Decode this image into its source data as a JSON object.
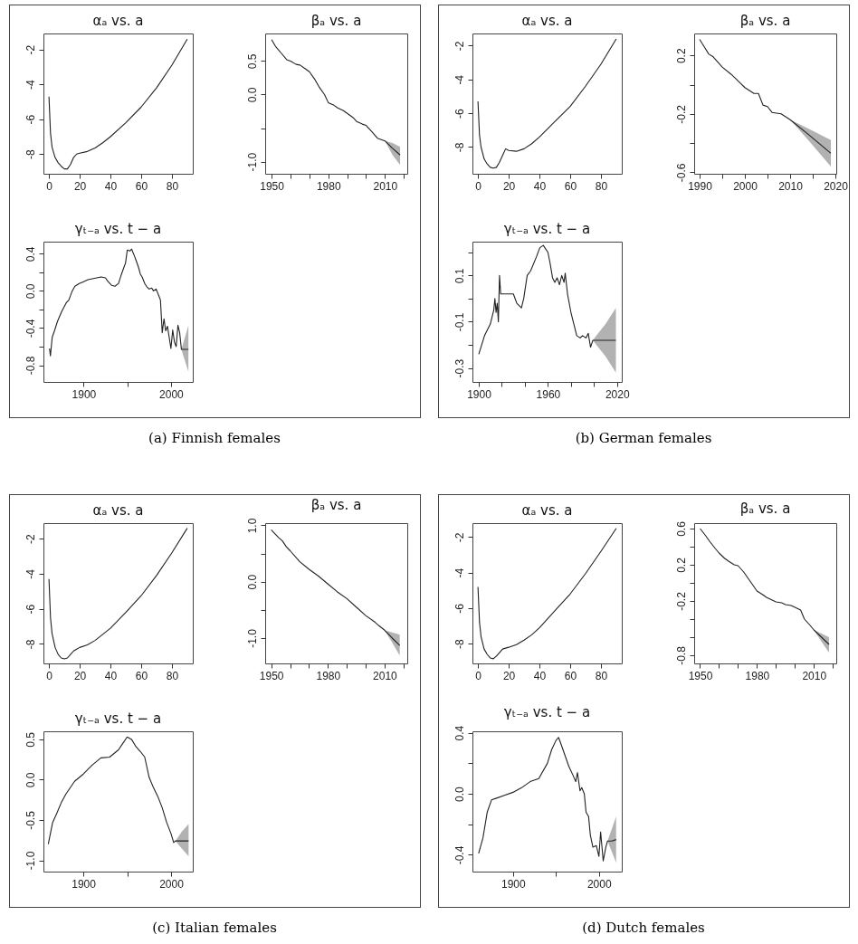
{
  "chart_data": [
    {
      "type": "line",
      "title": "αₐ vs. a",
      "x": [
        0,
        1,
        2,
        4,
        6,
        8,
        10,
        12,
        14,
        16,
        18,
        20,
        25,
        30,
        35,
        40,
        50,
        60,
        70,
        80,
        90
      ],
      "xlim": [
        -3.6,
        93.6
      ],
      "xticks": [
        0,
        20,
        40,
        60,
        80
      ],
      "ylim": [
        -9.13,
        -1.08
      ],
      "yticks": [
        -2,
        -4,
        -6,
        -8
      ],
      "series": [
        {
          "color": "#222222",
          "values": [
            -4.7,
            -6.8,
            -7.6,
            -8.2,
            -8.5,
            -8.7,
            -8.85,
            -8.85,
            -8.6,
            -8.2,
            -8.0,
            -7.95,
            -7.85,
            -7.65,
            -7.35,
            -7.0,
            -6.2,
            -5.3,
            -4.2,
            -2.9,
            -1.4
          ]
        }
      ]
    },
    {
      "type": "line",
      "title": "βₐ vs. a",
      "x": [
        1950,
        1952,
        1955,
        1958,
        1960,
        1963,
        1965,
        1968,
        1970,
        1973,
        1975,
        1978,
        1980,
        1983,
        1985,
        1988,
        1990,
        1993,
        1995,
        1998,
        2000,
        2003,
        2006,
        2008,
        2010,
        2014,
        2018
      ],
      "xlim": [
        1946.6,
        2021.8
      ],
      "xticks": [
        1950,
        {
          "value": 1960,
          "label": null
        },
        {
          "value": 1970,
          "label": null
        },
        1980,
        {
          "value": 1990,
          "label": null
        },
        {
          "value": 2000,
          "label": null
        },
        2010,
        {
          "value": 2020,
          "label": null
        }
      ],
      "ylim": [
        -1.18,
        0.91
      ],
      "yticks": [
        0.5,
        {
          "value": 0,
          "label": "0.0"
        },
        {
          "value": -0.5,
          "label": null
        },
        {
          "value": -1,
          "label": "-1.0"
        }
      ],
      "series": [
        {
          "color": "#222222",
          "values": [
            0.82,
            0.72,
            0.62,
            0.52,
            0.5,
            0.45,
            0.44,
            0.38,
            0.34,
            0.22,
            0.12,
            0.0,
            -0.12,
            -0.16,
            -0.2,
            -0.24,
            -0.28,
            -0.34,
            -0.4,
            -0.44,
            -0.46,
            -0.55,
            -0.65,
            -0.67,
            -0.69,
            -0.8,
            -0.9
          ],
          "lower": [
            null,
            null,
            null,
            null,
            null,
            null,
            null,
            null,
            null,
            null,
            null,
            null,
            null,
            null,
            null,
            null,
            null,
            null,
            null,
            null,
            null,
            null,
            null,
            null,
            -0.69,
            -0.9,
            -1.05
          ],
          "upper": [
            null,
            null,
            null,
            null,
            null,
            null,
            null,
            null,
            null,
            null,
            null,
            null,
            null,
            null,
            null,
            null,
            null,
            null,
            null,
            null,
            null,
            null,
            null,
            null,
            -0.69,
            -0.72,
            -0.78
          ]
        }
      ]
    },
    {
      "type": "line",
      "title": "γₜ₋ₐ vs. t − a",
      "annotations": [
        "(a) Finnish females"
      ],
      "x": [
        1861,
        1862,
        1864,
        1867,
        1870,
        1875,
        1880,
        1883,
        1887,
        1890,
        1895,
        1900,
        1905,
        1910,
        1915,
        1920,
        1925,
        1928,
        1932,
        1936,
        1940,
        1943,
        1946,
        1948,
        1950,
        1953,
        1955,
        1958,
        1960,
        1963,
        1965,
        1967,
        1970,
        1972,
        1975,
        1978,
        1980,
        1983,
        1986,
        1988,
        1990,
        1992,
        1994,
        1996,
        1998,
        2000,
        2002,
        2004,
        2006,
        2008,
        2010,
        2012,
        2016,
        2020
      ],
      "xlim": [
        1854,
        2025
      ],
      "xticks": [
        1900,
        {
          "value": 1950,
          "label": null
        },
        2000
      ],
      "ylim": [
        -0.98,
        0.53
      ],
      "yticks": [
        0.4,
        {
          "value": 0.2,
          "label": null
        },
        {
          "value": 0,
          "label": "0.0"
        },
        {
          "value": -0.2,
          "label": null
        },
        -0.4,
        {
          "value": -0.6,
          "label": null
        },
        -0.8
      ],
      "series": [
        {
          "color": "#222222",
          "values": [
            -0.62,
            -0.7,
            -0.5,
            -0.42,
            -0.33,
            -0.22,
            -0.13,
            -0.1,
            0.0,
            0.05,
            0.08,
            0.1,
            0.12,
            0.13,
            0.14,
            0.15,
            0.14,
            0.1,
            0.06,
            0.05,
            0.08,
            0.17,
            0.25,
            0.3,
            0.44,
            0.43,
            0.45,
            0.38,
            0.33,
            0.25,
            0.18,
            0.15,
            0.08,
            0.05,
            0.02,
            0.03,
            0.0,
            0.02,
            -0.05,
            -0.1,
            -0.45,
            -0.3,
            -0.43,
            -0.38,
            -0.5,
            -0.62,
            -0.42,
            -0.55,
            -0.6,
            -0.37,
            -0.45,
            -0.63,
            -0.63,
            -0.63
          ],
          "lower": [
            null,
            null,
            null,
            null,
            null,
            null,
            null,
            null,
            null,
            null,
            null,
            null,
            null,
            null,
            null,
            null,
            null,
            null,
            null,
            null,
            null,
            null,
            null,
            null,
            null,
            null,
            null,
            null,
            null,
            null,
            null,
            null,
            null,
            null,
            null,
            null,
            null,
            null,
            null,
            null,
            null,
            null,
            null,
            null,
            null,
            null,
            null,
            null,
            null,
            null,
            null,
            -0.63,
            -0.75,
            -0.87
          ],
          "upper": [
            null,
            null,
            null,
            null,
            null,
            null,
            null,
            null,
            null,
            null,
            null,
            null,
            null,
            null,
            null,
            null,
            null,
            null,
            null,
            null,
            null,
            null,
            null,
            null,
            null,
            null,
            null,
            null,
            null,
            null,
            null,
            null,
            null,
            null,
            null,
            null,
            null,
            null,
            null,
            null,
            null,
            null,
            null,
            null,
            null,
            null,
            null,
            null,
            null,
            null,
            null,
            -0.63,
            -0.5,
            -0.37
          ]
        }
      ]
    },
    {
      "type": "line",
      "title": "αₐ vs. a",
      "x": [
        0,
        1,
        2,
        4,
        6,
        8,
        10,
        12,
        14,
        16,
        18,
        20,
        25,
        30,
        35,
        40,
        50,
        60,
        70,
        80,
        90
      ],
      "xlim": [
        -3.6,
        93.6
      ],
      "xticks": [
        0,
        20,
        40,
        60,
        80
      ],
      "ylim": [
        -9.58,
        -1.28
      ],
      "yticks": [
        -2,
        -4,
        -6,
        -8
      ],
      "series": [
        {
          "color": "#222222",
          "values": [
            -5.3,
            -7.3,
            -8.0,
            -8.7,
            -9.0,
            -9.2,
            -9.25,
            -9.2,
            -8.9,
            -8.5,
            -8.1,
            -8.2,
            -8.25,
            -8.1,
            -7.8,
            -7.4,
            -6.5,
            -5.6,
            -4.4,
            -3.1,
            -1.6
          ]
        }
      ]
    },
    {
      "type": "line",
      "title": "βₐ vs. a",
      "x": [
        1990,
        1991,
        1992,
        1993,
        1995,
        1997,
        1999,
        2000,
        2002,
        2003,
        2004,
        2005,
        2006,
        2008,
        2010,
        2014,
        2019
      ],
      "xlim": [
        1988.8,
        2020.2
      ],
      "xticks": [
        1990,
        {
          "value": 1995,
          "label": null
        },
        2000,
        {
          "value": 2005,
          "label": null
        },
        2010,
        {
          "value": 2015,
          "label": null
        },
        2020
      ],
      "ylim": [
        -0.61,
        0.35
      ],
      "yticks": [
        0.2,
        {
          "value": 0,
          "label": null
        },
        -0.2,
        {
          "value": -0.4,
          "label": null
        },
        -0.6
      ],
      "series": [
        {
          "color": "#222222",
          "values": [
            0.31,
            0.26,
            0.21,
            0.19,
            0.12,
            0.07,
            0.01,
            -0.02,
            -0.06,
            -0.06,
            -0.14,
            -0.15,
            -0.19,
            -0.2,
            -0.24,
            -0.34,
            -0.47
          ],
          "lower": [
            null,
            null,
            null,
            null,
            null,
            null,
            null,
            null,
            null,
            null,
            null,
            null,
            null,
            null,
            -0.24,
            -0.38,
            -0.56
          ],
          "upper": [
            null,
            null,
            null,
            null,
            null,
            null,
            null,
            null,
            null,
            null,
            null,
            null,
            null,
            null,
            -0.24,
            -0.3,
            -0.38
          ]
        }
      ]
    },
    {
      "type": "line",
      "title": "γₜ₋ₐ vs. t − a",
      "annotations": [
        "(b) German females"
      ],
      "x": [
        1900,
        1905,
        1910,
        1913,
        1914,
        1915,
        1916,
        1917,
        1918,
        1919,
        1920,
        1925,
        1930,
        1933,
        1935,
        1937,
        1939,
        1942,
        1945,
        1950,
        1953,
        1956,
        1960,
        1962,
        1964,
        1966,
        1968,
        1970,
        1972,
        1974,
        1975,
        1977,
        1980,
        1983,
        1985,
        1988,
        1990,
        1993,
        1995,
        1997,
        1999,
        2002,
        2010,
        2019
      ],
      "xlim": [
        1894.5,
        2024.1
      ],
      "xticks": [
        1900,
        {
          "value": 1920,
          "label": null
        },
        {
          "value": 1940,
          "label": null
        },
        1960,
        {
          "value": 1980,
          "label": null
        },
        {
          "value": 2000,
          "label": null
        },
        2020
      ],
      "ylim": [
        -0.36,
        0.246
      ],
      "yticks": [
        {
          "value": 0.2,
          "label": null
        },
        0.1,
        {
          "value": 0,
          "label": null
        },
        -0.1,
        {
          "value": -0.2,
          "label": null
        },
        -0.3
      ],
      "series": [
        {
          "color": "#222222",
          "values": [
            -0.24,
            -0.16,
            -0.11,
            -0.05,
            0.0,
            -0.06,
            -0.02,
            -0.1,
            0.1,
            0.02,
            0.02,
            0.02,
            0.02,
            -0.02,
            -0.03,
            -0.04,
            0.0,
            0.1,
            0.12,
            0.18,
            0.22,
            0.23,
            0.2,
            0.15,
            0.09,
            0.07,
            0.09,
            0.06,
            0.1,
            0.07,
            0.11,
            0.02,
            -0.06,
            -0.12,
            -0.16,
            -0.17,
            -0.16,
            -0.17,
            -0.15,
            -0.21,
            -0.18,
            -0.18,
            -0.18,
            -0.18
          ],
          "lower": [
            null,
            null,
            null,
            null,
            null,
            null,
            null,
            null,
            null,
            null,
            null,
            null,
            null,
            null,
            null,
            null,
            null,
            null,
            null,
            null,
            null,
            null,
            null,
            null,
            null,
            null,
            null,
            null,
            null,
            null,
            null,
            null,
            null,
            null,
            null,
            null,
            null,
            null,
            null,
            null,
            -0.18,
            -0.2,
            -0.25,
            -0.32
          ],
          "upper": [
            null,
            null,
            null,
            null,
            null,
            null,
            null,
            null,
            null,
            null,
            null,
            null,
            null,
            null,
            null,
            null,
            null,
            null,
            null,
            null,
            null,
            null,
            null,
            null,
            null,
            null,
            null,
            null,
            null,
            null,
            null,
            null,
            null,
            null,
            null,
            null,
            null,
            null,
            null,
            null,
            -0.18,
            -0.16,
            -0.11,
            -0.04
          ]
        }
      ]
    },
    {
      "type": "line",
      "title": "αₐ vs. a",
      "x": [
        0,
        1,
        2,
        4,
        6,
        8,
        10,
        12,
        14,
        16,
        18,
        20,
        25,
        30,
        35,
        40,
        50,
        60,
        70,
        80,
        90
      ],
      "xlim": [
        -3.6,
        93.6
      ],
      "xticks": [
        0,
        20,
        40,
        60,
        80
      ],
      "ylim": [
        -9.11,
        -1.11
      ],
      "yticks": [
        -2,
        -4,
        -6,
        -8
      ],
      "series": [
        {
          "color": "#222222",
          "values": [
            -4.3,
            -6.5,
            -7.4,
            -8.2,
            -8.6,
            -8.8,
            -8.85,
            -8.8,
            -8.6,
            -8.4,
            -8.3,
            -8.2,
            -8.05,
            -7.8,
            -7.45,
            -7.1,
            -6.2,
            -5.25,
            -4.1,
            -2.8,
            -1.4
          ]
        }
      ]
    },
    {
      "type": "line",
      "title": "βₐ vs. a",
      "x": [
        1950,
        1952,
        1954,
        1956,
        1958,
        1960,
        1965,
        1970,
        1975,
        1980,
        1985,
        1990,
        1995,
        2000,
        2005,
        2007,
        2010,
        2014,
        2018
      ],
      "xlim": [
        1946.8,
        2022
      ],
      "xticks": [
        1950,
        {
          "value": 1960,
          "label": null
        },
        {
          "value": 1970,
          "label": null
        },
        1980,
        {
          "value": 1990,
          "label": null
        },
        {
          "value": 2000,
          "label": null
        },
        2010,
        {
          "value": 2020,
          "label": null
        }
      ],
      "ylim": [
        -1.45,
        1.04
      ],
      "yticks": [
        {
          "value": 1,
          "label": "1.0"
        },
        {
          "value": 0.5,
          "label": null
        },
        {
          "value": 0,
          "label": "0.0"
        },
        {
          "value": -0.5,
          "label": null
        },
        {
          "value": -1,
          "label": "-1.0"
        }
      ],
      "series": [
        {
          "color": "#222222",
          "values": [
            0.92,
            0.85,
            0.78,
            0.72,
            0.62,
            0.55,
            0.36,
            0.22,
            0.1,
            -0.04,
            -0.18,
            -0.3,
            -0.45,
            -0.6,
            -0.72,
            -0.78,
            -0.86,
            -1.0,
            -1.13
          ],
          "lower": [
            null,
            null,
            null,
            null,
            null,
            null,
            null,
            null,
            null,
            null,
            null,
            null,
            null,
            null,
            null,
            null,
            -0.86,
            -1.08,
            -1.31
          ],
          "upper": [
            null,
            null,
            null,
            null,
            null,
            null,
            null,
            null,
            null,
            null,
            null,
            null,
            null,
            null,
            null,
            null,
            -0.86,
            -0.9,
            -0.94
          ]
        }
      ]
    },
    {
      "type": "line",
      "title": "γₜ₋ₐ vs. t − a",
      "annotations": [
        "(c) Italian females"
      ],
      "x": [
        1860,
        1865,
        1870,
        1875,
        1880,
        1890,
        1900,
        1910,
        1920,
        1930,
        1940,
        1945,
        1950,
        1955,
        1960,
        1965,
        1970,
        1975,
        1980,
        1985,
        1990,
        1995,
        2000,
        2003,
        2005,
        2012,
        2020
      ],
      "xlim": [
        1854.5,
        2024.8
      ],
      "xticks": [
        1900,
        {
          "value": 1950,
          "label": null
        },
        2000
      ],
      "ylim": [
        -1.14,
        0.6
      ],
      "yticks": [
        0.5,
        {
          "value": 0,
          "label": "0.0"
        },
        -0.5,
        {
          "value": -1,
          "label": "-1.0"
        }
      ],
      "series": [
        {
          "color": "#222222",
          "values": [
            -0.8,
            -0.53,
            -0.41,
            -0.28,
            -0.18,
            -0.02,
            0.07,
            0.18,
            0.27,
            0.28,
            0.37,
            0.45,
            0.53,
            0.5,
            0.41,
            0.35,
            0.28,
            0.03,
            -0.1,
            -0.21,
            -0.35,
            -0.53,
            -0.67,
            -0.78,
            -0.76,
            -0.76,
            -0.76
          ],
          "lower": [
            null,
            null,
            null,
            null,
            null,
            null,
            null,
            null,
            null,
            null,
            null,
            null,
            null,
            null,
            null,
            null,
            null,
            null,
            null,
            null,
            null,
            null,
            null,
            null,
            -0.76,
            -0.85,
            -0.95
          ],
          "upper": [
            null,
            null,
            null,
            null,
            null,
            null,
            null,
            null,
            null,
            null,
            null,
            null,
            null,
            null,
            null,
            null,
            null,
            null,
            null,
            null,
            null,
            null,
            null,
            null,
            -0.76,
            -0.65,
            -0.55
          ]
        }
      ]
    },
    {
      "type": "line",
      "title": "αₐ vs. a",
      "x": [
        0,
        1,
        2,
        4,
        6,
        8,
        10,
        12,
        14,
        16,
        18,
        20,
        25,
        30,
        35,
        40,
        50,
        60,
        70,
        80,
        90
      ],
      "xlim": [
        -3.6,
        93.6
      ],
      "xticks": [
        0,
        20,
        40,
        60,
        80
      ],
      "ylim": [
        -9.11,
        -1.21
      ],
      "yticks": [
        -2,
        -4,
        -6,
        -8
      ],
      "series": [
        {
          "color": "#222222",
          "values": [
            -4.8,
            -6.8,
            -7.6,
            -8.3,
            -8.6,
            -8.8,
            -8.85,
            -8.7,
            -8.5,
            -8.3,
            -8.25,
            -8.2,
            -8.05,
            -7.8,
            -7.5,
            -7.1,
            -6.15,
            -5.2,
            -4.05,
            -2.8,
            -1.5
          ]
        }
      ]
    },
    {
      "type": "line",
      "title": "βₐ vs. a",
      "x": [
        1950,
        1953,
        1955,
        1958,
        1960,
        1963,
        1965,
        1968,
        1970,
        1973,
        1975,
        1978,
        1980,
        1983,
        1985,
        1988,
        1990,
        1993,
        1995,
        1998,
        2000,
        2003,
        2005,
        2008,
        2010,
        2014,
        2018
      ],
      "xlim": [
        1946.9,
        2021.8
      ],
      "xticks": [
        1950,
        {
          "value": 1960,
          "label": null
        },
        {
          "value": 1970,
          "label": null
        },
        1980,
        {
          "value": 1990,
          "label": null
        },
        {
          "value": 2000,
          "label": null
        },
        2010,
        {
          "value": 2020,
          "label": null
        }
      ],
      "ylim": [
        -0.89,
        0.66
      ],
      "yticks": [
        0.6,
        {
          "value": 0.4,
          "label": null
        },
        0.2,
        {
          "value": 0,
          "label": null
        },
        -0.2,
        {
          "value": -0.4,
          "label": null
        },
        {
          "value": -0.6,
          "label": null
        },
        -0.8
      ],
      "series": [
        {
          "color": "#222222",
          "values": [
            0.6,
            0.52,
            0.46,
            0.38,
            0.33,
            0.27,
            0.24,
            0.2,
            0.19,
            0.12,
            0.06,
            -0.03,
            -0.09,
            -0.13,
            -0.16,
            -0.19,
            -0.21,
            -0.22,
            -0.24,
            -0.25,
            -0.27,
            -0.3,
            -0.4,
            -0.47,
            -0.52,
            -0.6,
            -0.68
          ],
          "lower": [
            null,
            null,
            null,
            null,
            null,
            null,
            null,
            null,
            null,
            null,
            null,
            null,
            null,
            null,
            null,
            null,
            null,
            null,
            null,
            null,
            null,
            null,
            null,
            null,
            -0.52,
            -0.65,
            -0.77
          ],
          "upper": [
            null,
            null,
            null,
            null,
            null,
            null,
            null,
            null,
            null,
            null,
            null,
            null,
            null,
            null,
            null,
            null,
            null,
            null,
            null,
            null,
            null,
            null,
            null,
            null,
            -0.52,
            -0.56,
            -0.6
          ]
        }
      ]
    },
    {
      "type": "line",
      "title": "γₜ₋ₐ vs. t − a",
      "annotations": [
        "(d) Dutch females"
      ],
      "x": [
        1860,
        1862,
        1865,
        1870,
        1875,
        1880,
        1890,
        1900,
        1910,
        1920,
        1930,
        1940,
        1945,
        1950,
        1953,
        1955,
        1960,
        1965,
        1970,
        1973,
        1975,
        1978,
        1980,
        1983,
        1985,
        1988,
        1990,
        1993,
        1997,
        2000,
        2002,
        2005,
        2008,
        2010,
        2015,
        2020
      ],
      "xlim": [
        1852.8,
        2026.6
      ],
      "xticks": [
        1900,
        {
          "value": 1950,
          "label": null
        },
        2000
      ],
      "ylim": [
        -0.51,
        0.41
      ],
      "yticks": [
        0.4,
        {
          "value": 0.2,
          "label": null
        },
        {
          "value": 0,
          "label": "0.0"
        },
        {
          "value": -0.2,
          "label": null
        },
        -0.4
      ],
      "series": [
        {
          "color": "#222222",
          "values": [
            -0.39,
            -0.35,
            -0.29,
            -0.12,
            -0.04,
            -0.03,
            -0.01,
            0.01,
            0.04,
            0.08,
            0.1,
            0.2,
            0.29,
            0.35,
            0.37,
            0.34,
            0.26,
            0.18,
            0.12,
            0.08,
            0.14,
            0.02,
            0.04,
            0.0,
            -0.12,
            -0.15,
            -0.27,
            -0.35,
            -0.34,
            -0.41,
            -0.25,
            -0.44,
            -0.35,
            -0.31,
            -0.31,
            -0.3
          ],
          "lower": [
            null,
            null,
            null,
            null,
            null,
            null,
            null,
            null,
            null,
            null,
            null,
            null,
            null,
            null,
            null,
            null,
            null,
            null,
            null,
            null,
            null,
            null,
            null,
            null,
            null,
            null,
            null,
            null,
            null,
            null,
            null,
            null,
            null,
            -0.31,
            -0.38,
            -0.45
          ],
          "upper": [
            null,
            null,
            null,
            null,
            null,
            null,
            null,
            null,
            null,
            null,
            null,
            null,
            null,
            null,
            null,
            null,
            null,
            null,
            null,
            null,
            null,
            null,
            null,
            null,
            null,
            null,
            null,
            null,
            null,
            null,
            null,
            null,
            null,
            -0.31,
            -0.23,
            -0.15
          ]
        }
      ]
    }
  ]
}
